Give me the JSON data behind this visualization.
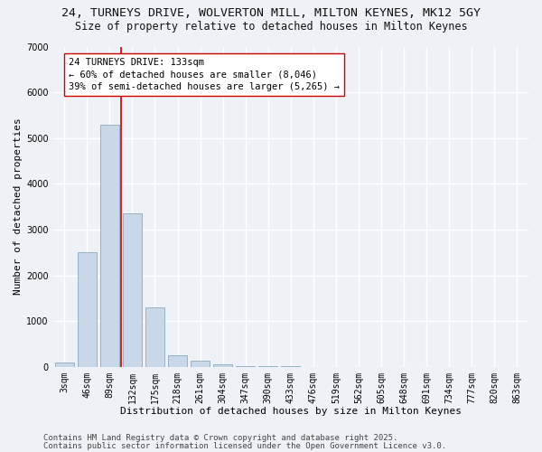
{
  "title_line1": "24, TURNEYS DRIVE, WOLVERTON MILL, MILTON KEYNES, MK12 5GY",
  "title_line2": "Size of property relative to detached houses in Milton Keynes",
  "xlabel": "Distribution of detached houses by size in Milton Keynes",
  "ylabel": "Number of detached properties",
  "bar_labels": [
    "3sqm",
    "46sqm",
    "89sqm",
    "132sqm",
    "175sqm",
    "218sqm",
    "261sqm",
    "304sqm",
    "347sqm",
    "390sqm",
    "433sqm",
    "476sqm",
    "519sqm",
    "562sqm",
    "605sqm",
    "648sqm",
    "691sqm",
    "734sqm",
    "777sqm",
    "820sqm",
    "863sqm"
  ],
  "bar_values": [
    100,
    2500,
    5300,
    3350,
    1300,
    250,
    130,
    50,
    20,
    10,
    5,
    2,
    1,
    1,
    0,
    0,
    0,
    0,
    0,
    0,
    0
  ],
  "bar_color": "#c8d8e8",
  "bar_edge_color": "#8aaabf",
  "vline_color": "#cc0000",
  "annotation_text": "24 TURNEYS DRIVE: 133sqm\n← 60% of detached houses are smaller (8,046)\n39% of semi-detached houses are larger (5,265) →",
  "annotation_box_color": "#ffffff",
  "annotation_box_edge": "#cc0000",
  "ylim": [
    0,
    7000
  ],
  "yticks": [
    0,
    1000,
    2000,
    3000,
    4000,
    5000,
    6000,
    7000
  ],
  "footer_line1": "Contains HM Land Registry data © Crown copyright and database right 2025.",
  "footer_line2": "Contains public sector information licensed under the Open Government Licence v3.0.",
  "bg_color": "#eef2f7",
  "grid_color": "#ffffff",
  "title_fontsize": 9.5,
  "subtitle_fontsize": 8.5,
  "axis_label_fontsize": 8,
  "tick_fontsize": 7,
  "annotation_fontsize": 7.5,
  "footer_fontsize": 6.5
}
